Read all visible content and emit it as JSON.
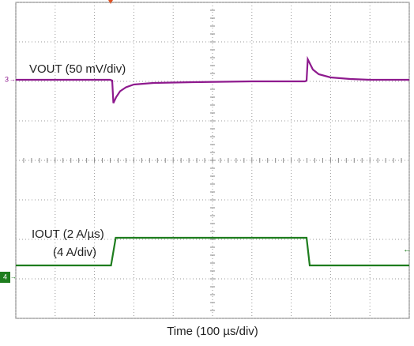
{
  "chart_data": [
    {
      "type": "line",
      "channel": "3",
      "x": [
        0,
        240,
        245,
        248,
        255,
        265,
        280,
        300,
        350,
        450,
        600,
        735,
        739,
        742,
        746,
        755,
        770,
        800,
        850,
        900,
        1000
      ],
      "series": [
        {
          "name": "VOUT (50 mV/div)",
          "color": "#8e1a8e",
          "values": [
            6.04,
            6.04,
            6.02,
            5.45,
            5.6,
            5.75,
            5.85,
            5.92,
            5.96,
            5.98,
            6.0,
            6.0,
            6.02,
            6.56,
            6.48,
            6.3,
            6.18,
            6.1,
            6.06,
            6.04,
            6.04
          ]
        }
      ],
      "xlim": [
        0,
        1000
      ],
      "ylim": [
        0,
        8
      ],
      "xticks": [
        0,
        100,
        200,
        300,
        400,
        500,
        600,
        700,
        800,
        900,
        1000
      ],
      "yticks": [
        0,
        1,
        2,
        3,
        4,
        5,
        6,
        7,
        8
      ],
      "grid": true
    },
    {
      "type": "line",
      "channel": "4",
      "xlabel": "Time (100 µs/div)",
      "x": [
        0,
        242,
        254,
        739,
        747,
        1000
      ],
      "series": [
        {
          "name": [
            "IOUT (2 A/µs)",
            "(4 A/div)"
          ],
          "color": "#1e7d1e",
          "values": [
            1.34,
            1.34,
            2.04,
            2.04,
            1.34,
            1.34
          ]
        }
      ],
      "xlim": [
        0,
        1000
      ],
      "ylim": [
        0,
        8
      ]
    }
  ]
}
